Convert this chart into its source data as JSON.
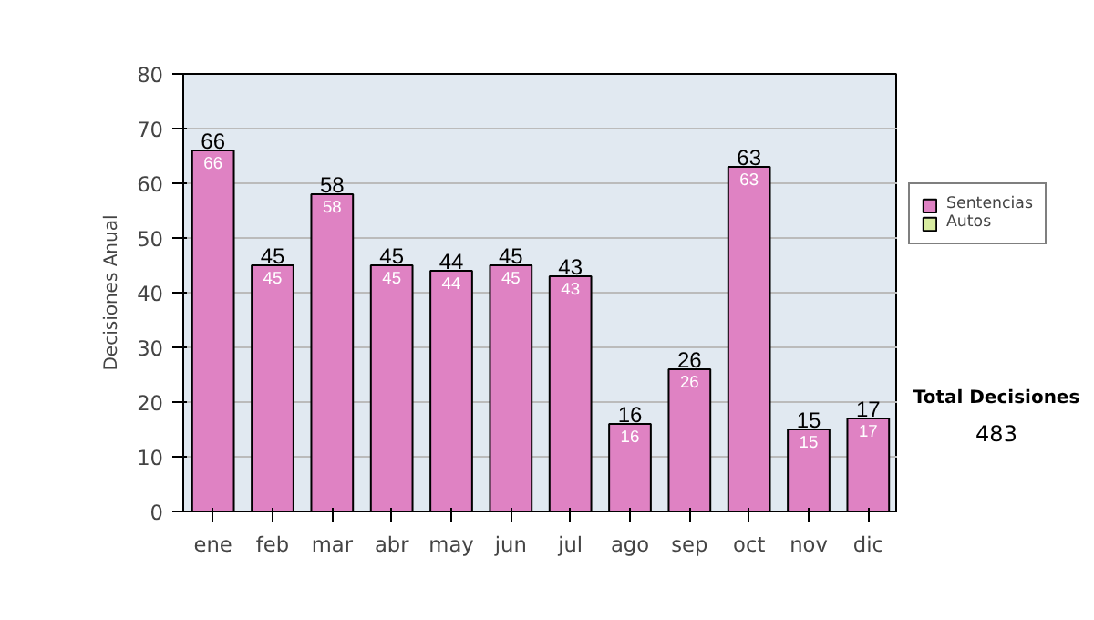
{
  "chart_data": {
    "type": "bar",
    "ylabel": "Decisiones Anual",
    "categories": [
      "ene",
      "feb",
      "mar",
      "abr",
      "may",
      "jun",
      "jul",
      "ago",
      "sep",
      "oct",
      "nov",
      "dic"
    ],
    "series": [
      {
        "name": "Sentencias",
        "color": "#df82c3",
        "values": [
          66,
          45,
          58,
          45,
          44,
          45,
          43,
          16,
          26,
          63,
          15,
          17
        ]
      },
      {
        "name": "Autos",
        "color": "#d8eca0",
        "values": [
          null,
          null,
          null,
          null,
          null,
          null,
          null,
          null,
          null,
          null,
          null,
          null
        ]
      }
    ],
    "data_labels": true,
    "totals": [
      "66",
      "45",
      "58",
      "45",
      "44",
      "45",
      "43",
      "16",
      "26",
      "63",
      "15",
      "17"
    ],
    "ylim": [
      0,
      80
    ],
    "yticks": [
      0,
      10,
      20,
      30,
      40,
      50,
      60,
      70,
      80
    ],
    "grid": "y",
    "legend": "right",
    "annotations": [
      "Total Decisiones",
      "483"
    ]
  }
}
